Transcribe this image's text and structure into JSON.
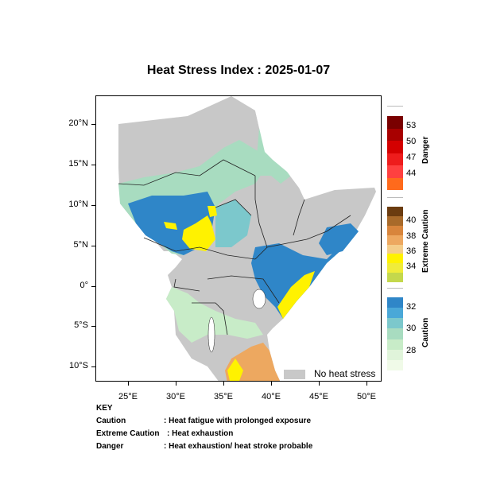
{
  "title": "Heat Stress Index : 2025-01-07",
  "axes": {
    "lat_labels": [
      "20°N",
      "15°N",
      "10°N",
      "5°N",
      "0°",
      "5°S",
      "10°S"
    ],
    "lon_labels": [
      "25°E",
      "30°E",
      "35°E",
      "40°E",
      "45°E",
      "50°E"
    ]
  },
  "legend": {
    "danger": {
      "title": "Danger",
      "labels": [
        "53",
        "50",
        "47",
        "44"
      ],
      "colors": [
        "#7a0000",
        "#a80000",
        "#d40000",
        "#ee1c1c",
        "#ff4040",
        "#ff6a1c"
      ]
    },
    "extreme": {
      "title": "Extreme Caution",
      "labels": [
        "40",
        "38",
        "36",
        "34"
      ],
      "colors": [
        "#6b3c10",
        "#a86a2a",
        "#d8853c",
        "#eda860",
        "#f4cd8a",
        "#fff200",
        "#f0ec3a",
        "#c4d84c"
      ]
    },
    "caution": {
      "title": "Caution",
      "labels": [
        "32",
        "30",
        "28"
      ],
      "colors": [
        "#2f86c8",
        "#4aa8d8",
        "#7cc8cc",
        "#a8dcc0",
        "#c8ecc8",
        "#e0f4da",
        "#f0fae8"
      ]
    }
  },
  "no_heat_stress_label": "No heat stress",
  "key": {
    "heading": "KEY",
    "rows": [
      {
        "term": "Caution",
        "desc": ": Heat fatigue with prolonged exposure"
      },
      {
        "term": "Extreme Caution",
        "desc": ": Heat exhaustion"
      },
      {
        "term": "Danger",
        "desc": ": Heat exhaustion/ heat stroke probable"
      }
    ]
  },
  "colors": {
    "land": "#c8c8c8",
    "caution_light": "#a8dcc0",
    "caution_mid": "#7cc8cc",
    "caution_dark": "#2f86c8",
    "extreme_yellow": "#fff200",
    "extreme_orange": "#eda860",
    "border": "#222222"
  }
}
